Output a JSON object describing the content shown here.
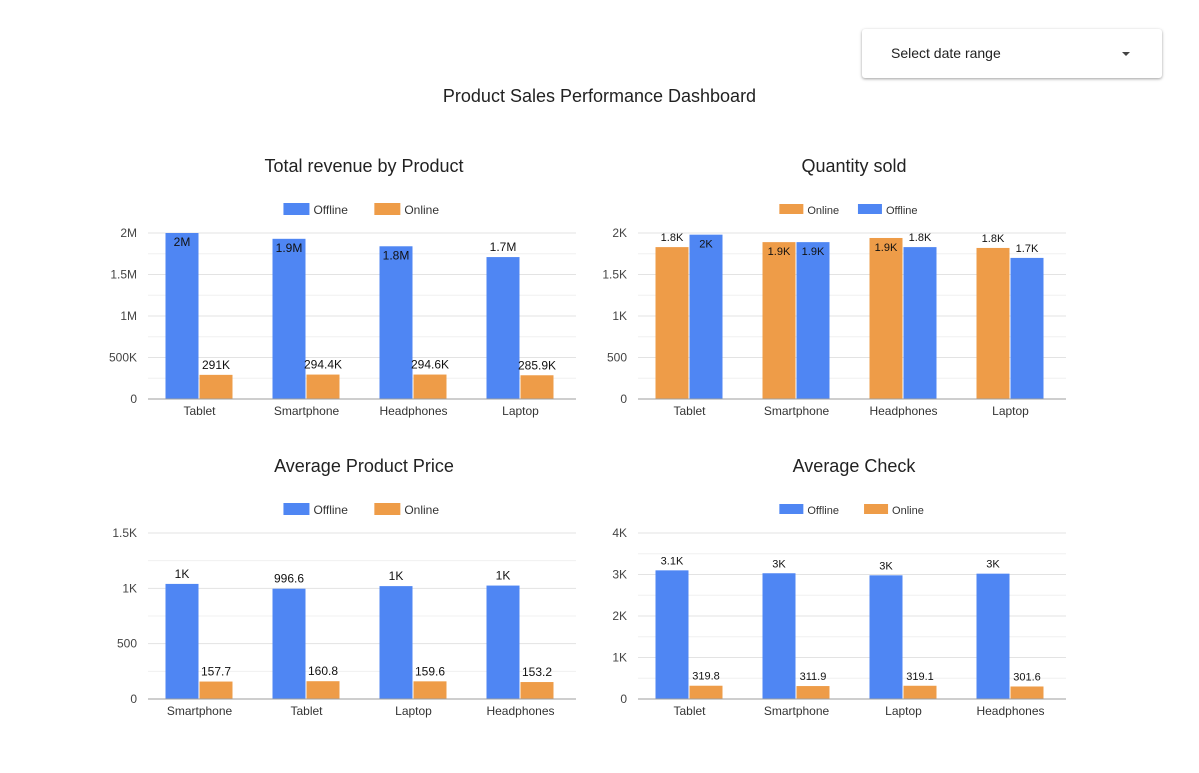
{
  "header": {
    "date_select_label": "Select date range",
    "page_title": "Product Sales Performance Dashboard"
  },
  "colors": {
    "offline": "#4f86f3",
    "online": "#ee9c48",
    "grid": "#e3e3e3",
    "axis": "#9e9e9e"
  },
  "icons": {
    "date_select_caret": "caret-down-icon"
  },
  "chart_data": [
    {
      "id": "chart-revenue",
      "type": "bar",
      "title": "Total revenue by Product",
      "legend_position": "top",
      "legend_size": "large",
      "categories": [
        "Tablet",
        "Smartphone",
        "Headphones",
        "Laptop"
      ],
      "series": [
        {
          "name": "Offline",
          "color": "#4f86f3",
          "values": [
            2000000,
            1930000,
            1840000,
            1710000
          ],
          "labels": [
            "2M",
            "1.9M",
            "1.8M",
            "1.7M"
          ],
          "label_inside": [
            true,
            true,
            true,
            false
          ]
        },
        {
          "name": "Online",
          "color": "#ee9c48",
          "values": [
            291000,
            294400,
            294600,
            285900
          ],
          "labels": [
            "291K",
            "294.4K",
            "294.6K",
            "285.9K"
          ],
          "label_inside": [
            false,
            false,
            false,
            false
          ]
        }
      ],
      "ylim": [
        0,
        2000000
      ],
      "yticks": [
        0,
        500000,
        1000000,
        1500000,
        2000000
      ],
      "yticklabels": [
        "0",
        "500K",
        "1M",
        "1.5M",
        "2M"
      ],
      "grid": true,
      "xlabel": "",
      "ylabel": ""
    },
    {
      "id": "chart-quantity",
      "type": "bar",
      "title": "Quantity sold",
      "legend_position": "top",
      "legend_size": "small",
      "categories": [
        "Tablet",
        "Smartphone",
        "Headphones",
        "Laptop"
      ],
      "series": [
        {
          "name": "Online",
          "color": "#ee9c48",
          "values": [
            1830,
            1890,
            1940,
            1820
          ],
          "labels": [
            "1.8K",
            "1.9K",
            "1.9K",
            "1.8K"
          ],
          "label_inside": [
            false,
            true,
            true,
            false
          ]
        },
        {
          "name": "Offline",
          "color": "#4f86f3",
          "values": [
            1980,
            1890,
            1830,
            1700
          ],
          "labels": [
            "2K",
            "1.9K",
            "1.8K",
            "1.7K"
          ],
          "label_inside": [
            true,
            true,
            false,
            false
          ]
        }
      ],
      "ylim": [
        0,
        2000
      ],
      "yticks": [
        0,
        500,
        1000,
        1500,
        2000
      ],
      "yticklabels": [
        "0",
        "500",
        "1K",
        "1.5K",
        "2K"
      ],
      "grid": true,
      "xlabel": "",
      "ylabel": ""
    },
    {
      "id": "chart-price",
      "type": "bar",
      "title": "Average Product Price",
      "legend_position": "top",
      "legend_size": "large",
      "categories": [
        "Smartphone",
        "Tablet",
        "Laptop",
        "Headphones"
      ],
      "series": [
        {
          "name": "Offline",
          "color": "#4f86f3",
          "values": [
            1040,
            996.6,
            1020,
            1025
          ],
          "labels": [
            "1K",
            "996.6",
            "1K",
            "1K"
          ],
          "label_inside": [
            false,
            false,
            false,
            false
          ]
        },
        {
          "name": "Online",
          "color": "#ee9c48",
          "values": [
            157.7,
            160.8,
            159.6,
            153.2
          ],
          "labels": [
            "157.7",
            "160.8",
            "159.6",
            "153.2"
          ],
          "label_inside": [
            false,
            false,
            false,
            false
          ]
        }
      ],
      "ylim": [
        0,
        1500
      ],
      "yticks": [
        0,
        500,
        1000,
        1500
      ],
      "yticklabels": [
        "0",
        "500",
        "1K",
        "1.5K"
      ],
      "grid": true,
      "xlabel": "",
      "ylabel": ""
    },
    {
      "id": "chart-check",
      "type": "bar",
      "title": "Average Check",
      "legend_position": "top",
      "legend_size": "small",
      "categories": [
        "Tablet",
        "Smartphone",
        "Laptop",
        "Headphones"
      ],
      "series": [
        {
          "name": "Offline",
          "color": "#4f86f3",
          "values": [
            3100,
            3030,
            2980,
            3020
          ],
          "labels": [
            "3.1K",
            "3K",
            "3K",
            "3K"
          ],
          "label_inside": [
            false,
            false,
            false,
            false
          ]
        },
        {
          "name": "Online",
          "color": "#ee9c48",
          "values": [
            319.8,
            311.9,
            319.1,
            301.6
          ],
          "labels": [
            "319.8",
            "311.9",
            "319.1",
            "301.6"
          ],
          "label_inside": [
            false,
            false,
            false,
            false
          ]
        }
      ],
      "ylim": [
        0,
        4000
      ],
      "yticks": [
        0,
        1000,
        2000,
        3000,
        4000
      ],
      "yticklabels": [
        "0",
        "1K",
        "2K",
        "3K",
        "4K"
      ],
      "grid": true,
      "xlabel": "",
      "ylabel": ""
    }
  ]
}
